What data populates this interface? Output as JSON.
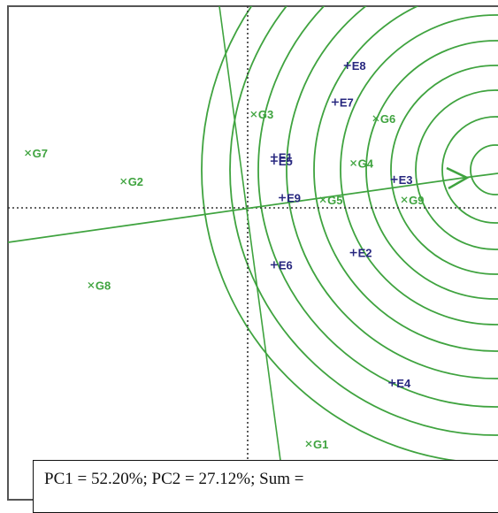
{
  "chart_data": {
    "type": "scatter",
    "title": "",
    "xlabel": "",
    "ylabel": "",
    "grid": false,
    "legend": "none",
    "ideal_cultivar_vector": true,
    "concentric_circles_count": 11,
    "series": [
      {
        "name": "",
        "marker": "x",
        "color": "#3fa33f",
        "points": [
          {
            "label": "G1",
            "x": 1.5,
            "y": -5.8
          },
          {
            "label": "G2",
            "x": -3.05,
            "y": 0.65
          },
          {
            "label": "G3",
            "x": 0.15,
            "y": 2.3
          },
          {
            "label": "G4",
            "x": 2.6,
            "y": 1.1
          },
          {
            "label": "G5",
            "x": 1.85,
            "y": 0.2
          },
          {
            "label": "G6",
            "x": 3.15,
            "y": 2.2
          },
          {
            "label": "G7",
            "x": -5.4,
            "y": 1.35
          },
          {
            "label": "G8",
            "x": -3.85,
            "y": -1.9
          },
          {
            "label": "G9",
            "x": 3.85,
            "y": 0.2
          }
        ]
      },
      {
        "name": "",
        "marker": "+",
        "color": "#27277f",
        "points": [
          {
            "label": "E1",
            "x": 0.65,
            "y": 1.25
          },
          {
            "label": "E2",
            "x": 2.6,
            "y": -1.1
          },
          {
            "label": "E3",
            "x": 3.6,
            "y": 0.7
          },
          {
            "label": "E4",
            "x": 3.55,
            "y": -4.3
          },
          {
            "label": "E5",
            "x": 0.65,
            "y": 1.15
          },
          {
            "label": "E6",
            "x": 0.65,
            "y": -1.4
          },
          {
            "label": "E7",
            "x": 2.15,
            "y": 2.6
          },
          {
            "label": "E8",
            "x": 2.45,
            "y": 3.5
          },
          {
            "label": "E9",
            "x": 0.85,
            "y": 0.25
          }
        ]
      }
    ],
    "xlim": [
      -6.0,
      6.0
    ],
    "ylim": [
      -7.5,
      5.1
    ]
  },
  "colors": {
    "genotype": "#3fa33f",
    "environment": "#27277f",
    "circles": "#3fa33f",
    "axes": "#333333"
  },
  "caption": "PC1 = 52.20%; PC2 = 27.12%; Sum ="
}
